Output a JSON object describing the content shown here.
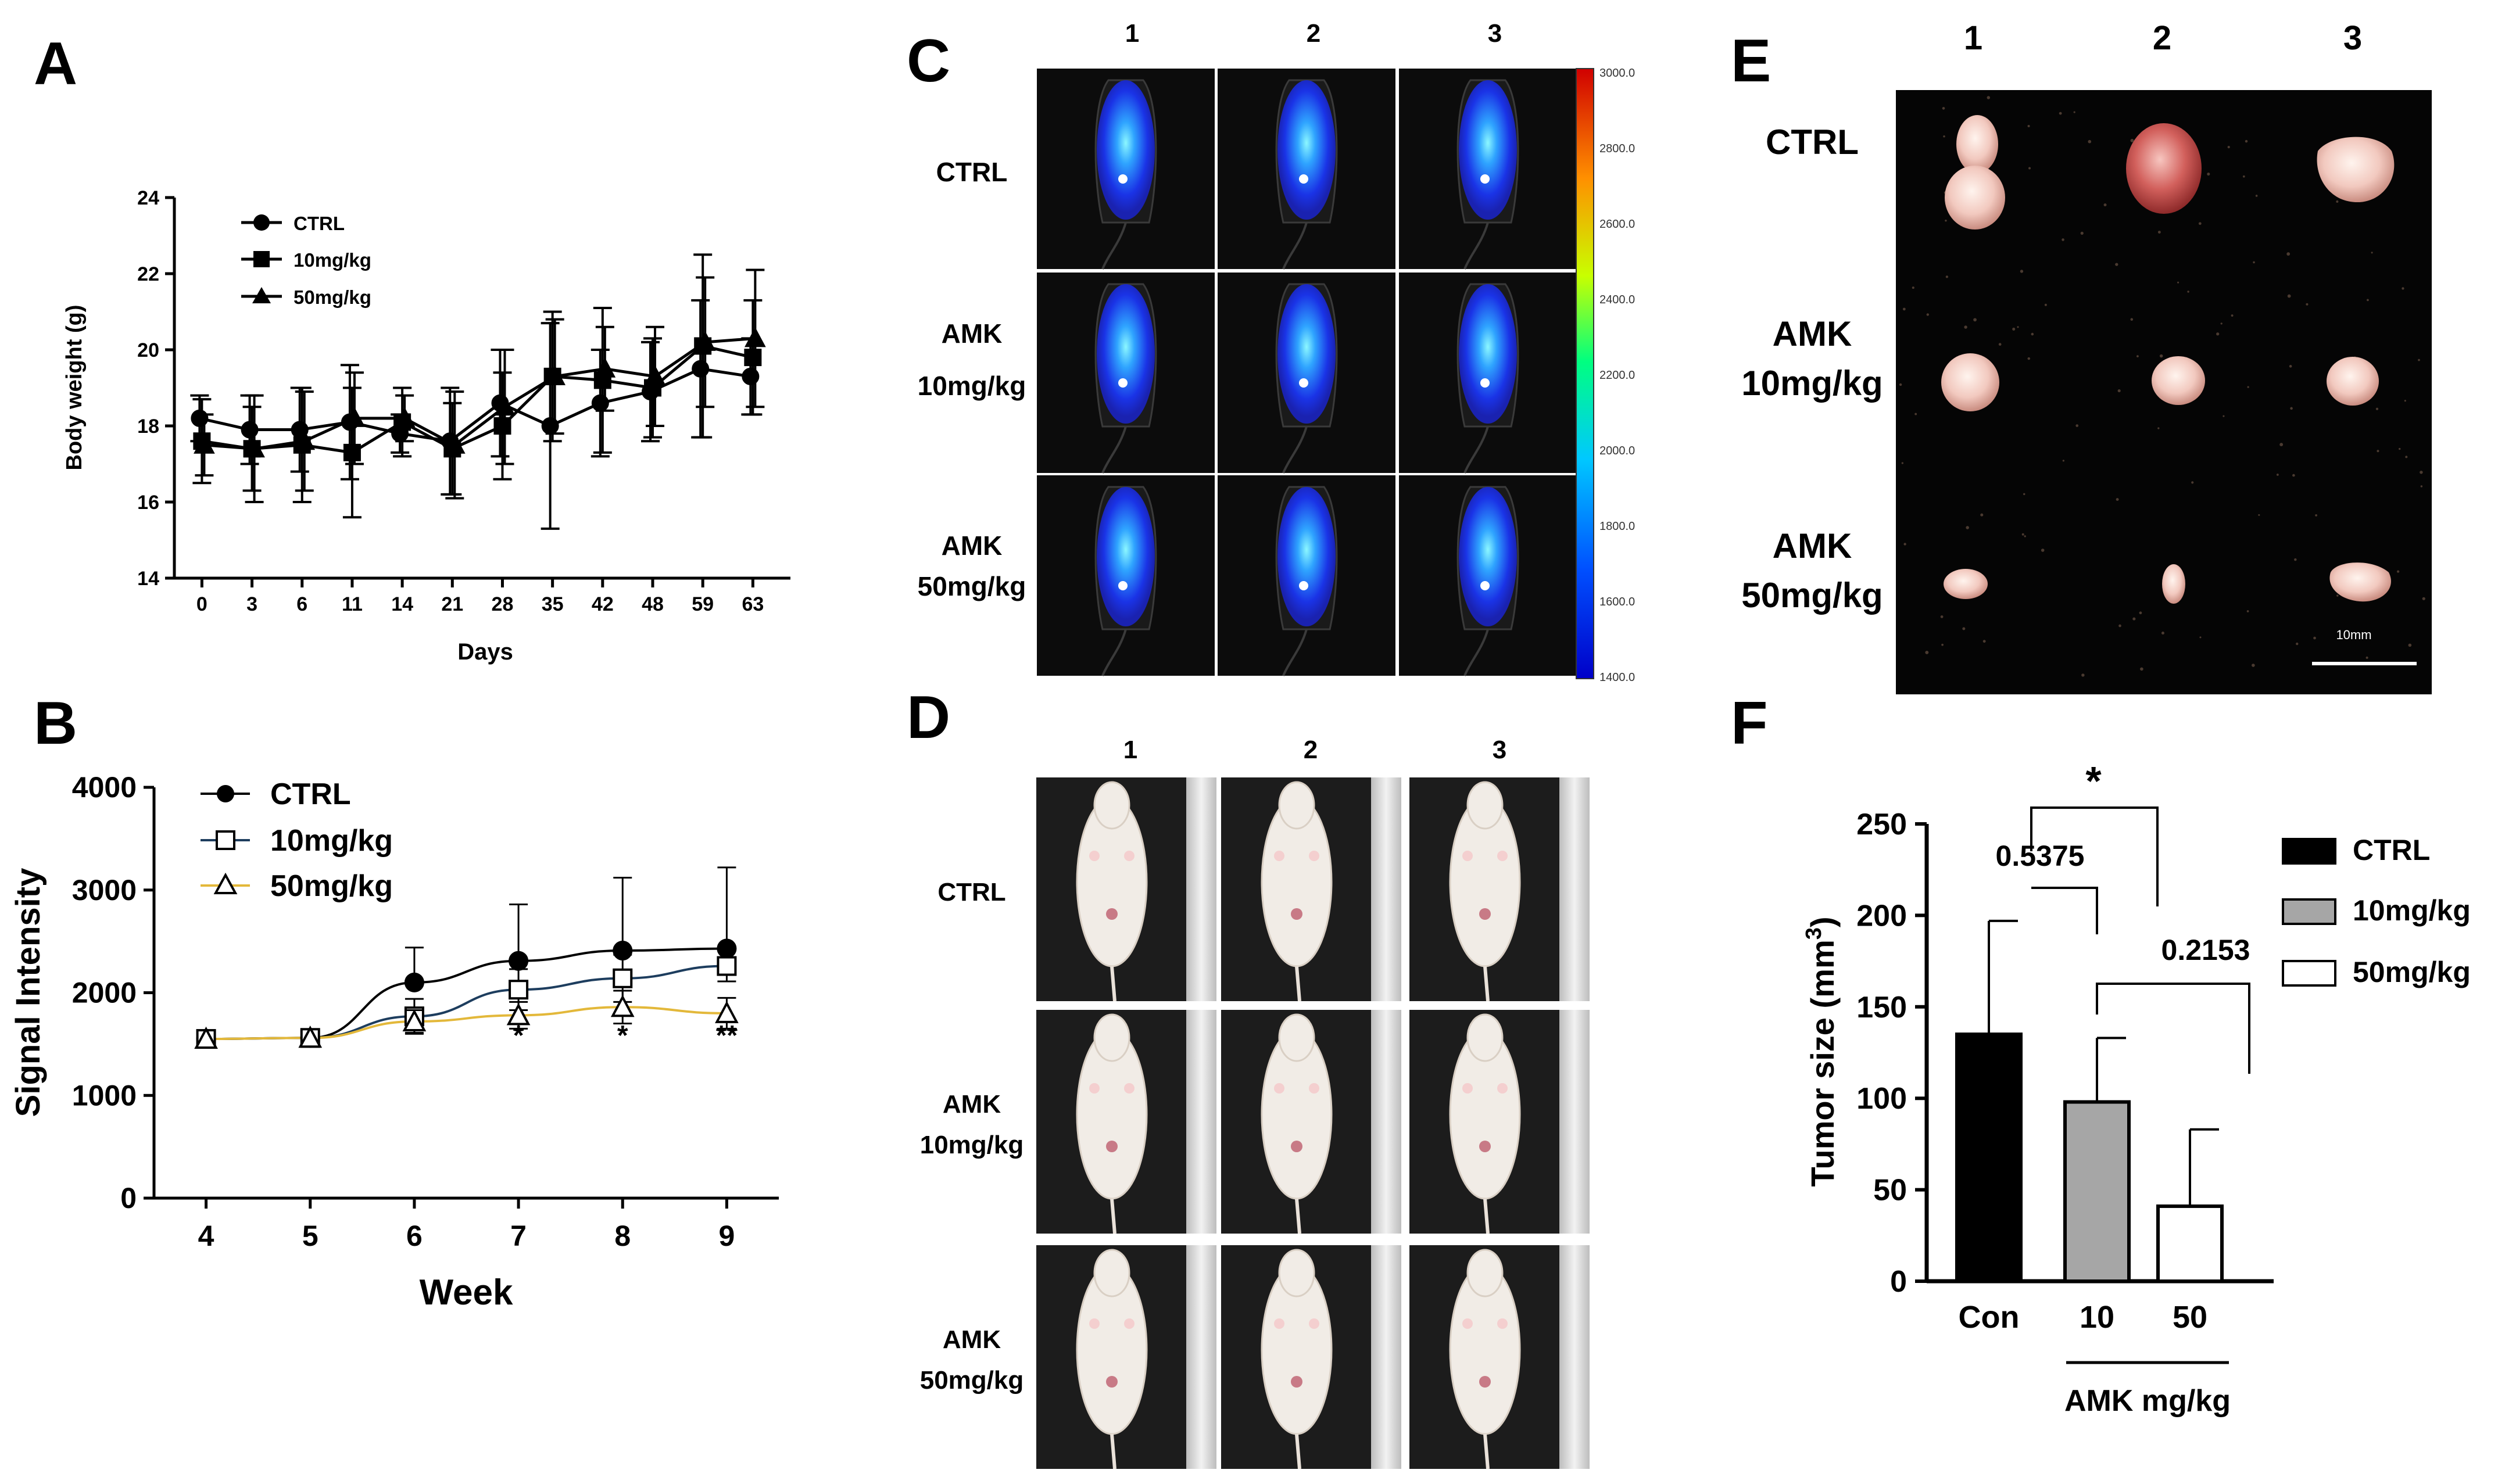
{
  "panel_labels": {
    "a": "A",
    "b": "B",
    "c": "C",
    "d": "D",
    "e": "E",
    "f": "F"
  },
  "panel_c": {
    "columns": [
      "1",
      "2",
      "3"
    ],
    "rows": [
      [
        "CTRL"
      ],
      [
        "AMK",
        "10mg/kg"
      ],
      [
        "AMK",
        "50mg/kg"
      ]
    ],
    "colorbar_ticks": [
      "3000.0",
      "2800.0",
      "2600.0",
      "2400.0",
      "2200.0",
      "2000.0",
      "1800.0",
      "1600.0",
      "1400.0"
    ]
  },
  "panel_d": {
    "columns": [
      "1",
      "2",
      "3"
    ],
    "rows": [
      [
        "CTRL"
      ],
      [
        "AMK",
        "10mg/kg"
      ],
      [
        "AMK",
        "50mg/kg"
      ]
    ]
  },
  "panel_e": {
    "columns": [
      "1",
      "2",
      "3"
    ],
    "rows": [
      [
        "CTRL"
      ],
      [
        "AMK",
        "10mg/kg"
      ],
      [
        "AMK",
        "50mg/kg"
      ]
    ],
    "scale_bar": "10mm"
  },
  "colors": {
    "ctrl": "#000000",
    "mg10": "#1d3d5e",
    "mg50": "#e3b83a",
    "bar_10": "#a6a6a6",
    "bar_50": "#ffffff"
  },
  "chart_data": [
    {
      "id": "A",
      "type": "line",
      "title": "",
      "xlabel": "Days",
      "ylabel": "Body weight (g)",
      "categories": [
        "0",
        "3",
        "6",
        "11",
        "14",
        "21",
        "28",
        "35",
        "42",
        "48",
        "59",
        "63"
      ],
      "ylim": [
        14,
        24
      ],
      "yticks": [
        14,
        16,
        18,
        20,
        22,
        24
      ],
      "legend_position": "top-left",
      "series": [
        {
          "name": "CTRL",
          "marker": "circle",
          "values": [
            18.2,
            17.9,
            17.9,
            18.1,
            17.8,
            17.6,
            18.6,
            18.0,
            18.6,
            18.9,
            19.5,
            19.3
          ],
          "errors": [
            0.6,
            0.9,
            1.1,
            1.5,
            0.5,
            1.4,
            1.4,
            2.7,
            1.4,
            1.3,
            1.8,
            1.0
          ]
        },
        {
          "name": "10mg/kg",
          "marker": "square",
          "values": [
            17.6,
            17.4,
            17.5,
            17.3,
            18.1,
            17.4,
            18.0,
            19.3,
            19.2,
            19.0,
            20.1,
            19.8
          ],
          "errors": [
            1.1,
            1.1,
            1.5,
            1.7,
            0.9,
            1.2,
            1.4,
            1.7,
            1.9,
            1.3,
            2.4,
            1.5
          ]
        },
        {
          "name": "50mg/kg",
          "marker": "triangle",
          "values": [
            17.5,
            17.4,
            17.6,
            18.2,
            18.2,
            17.5,
            18.5,
            19.3,
            19.5,
            19.3,
            20.2,
            20.3
          ],
          "errors": [
            0.8,
            1.4,
            1.3,
            1.2,
            0.6,
            1.4,
            1.5,
            1.5,
            1.1,
            1.3,
            1.7,
            1.8
          ]
        }
      ]
    },
    {
      "id": "B",
      "type": "line",
      "title": "",
      "xlabel": "Week",
      "ylabel": "Signal Intensity",
      "x": [
        4,
        5,
        6,
        7,
        8,
        9
      ],
      "xlim": [
        3.5,
        9.5
      ],
      "ylim": [
        0,
        4000
      ],
      "yticks": [
        0,
        1000,
        2000,
        3000,
        4000
      ],
      "legend_position": "top-left",
      "series": [
        {
          "name": "CTRL",
          "marker": "circle-filled",
          "values": [
            1550,
            1560,
            2100,
            2310,
            2410,
            2430
          ],
          "errors": [
            0,
            0,
            340,
            550,
            710,
            790
          ]
        },
        {
          "name": "10mg/kg",
          "marker": "square-open",
          "values": [
            1550,
            1560,
            1770,
            2030,
            2140,
            2260
          ],
          "errors": [
            0,
            0,
            170,
            200,
            230,
            150
          ]
        },
        {
          "name": "50mg/kg",
          "marker": "triangle-open",
          "values": [
            1550,
            1560,
            1720,
            1780,
            1860,
            1800
          ],
          "errors": [
            0,
            0,
            110,
            130,
            160,
            150
          ]
        }
      ],
      "annotations": [
        {
          "x": 7,
          "text": "*"
        },
        {
          "x": 8,
          "text": "*"
        },
        {
          "x": 9,
          "text": "**"
        }
      ]
    },
    {
      "id": "F",
      "type": "bar",
      "title": "",
      "xlabel": "AMK mg/kg",
      "ylabel_main": "Tumor size (mm",
      "ylabel_sup": "3",
      "ylabel_tail": ")",
      "categories": [
        "Con",
        "10",
        "50"
      ],
      "values": [
        135,
        98,
        41
      ],
      "errors": [
        62,
        35,
        42
      ],
      "ylim": [
        0,
        250
      ],
      "yticks": [
        0,
        50,
        100,
        150,
        200,
        250
      ],
      "legend": [
        "CTRL",
        "10mg/kg",
        "50mg/kg"
      ],
      "legend_position": "right",
      "annotations": [
        "*",
        "0.5375",
        "0.2153"
      ]
    }
  ]
}
